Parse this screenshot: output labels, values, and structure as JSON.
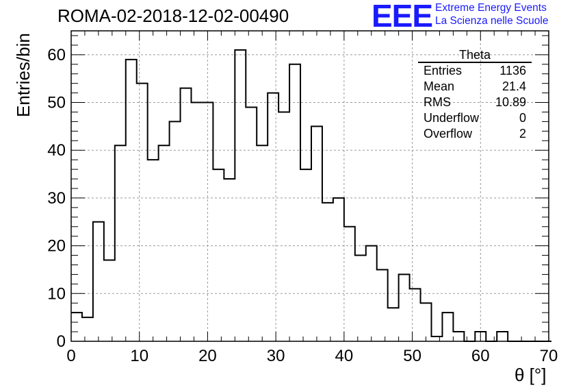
{
  "header": {
    "title": "ROMA-02-2018-12-02-00490",
    "logo": "EEE",
    "logo_line1": "Extreme Energy Events",
    "logo_line2": "La Scienza nelle Scuole"
  },
  "stats_box": {
    "title": "Theta",
    "rows": [
      {
        "label": "Entries",
        "value": "1136"
      },
      {
        "label": "Mean",
        "value": "21.4"
      },
      {
        "label": "RMS",
        "value": "10.89"
      },
      {
        "label": "Underflow",
        "value": "0"
      },
      {
        "label": "Overflow",
        "value": "2"
      }
    ]
  },
  "chart_data": {
    "type": "bar",
    "histogram": true,
    "xlabel": "θ [°]",
    "ylabel": "Entries/bin",
    "xlim": [
      0,
      70
    ],
    "ylim": [
      0,
      65
    ],
    "grid": true,
    "bin_width": 1.6,
    "bin_edges_start": 0,
    "values": [
      6,
      5,
      25,
      17,
      41,
      59,
      54,
      38,
      41,
      46,
      53,
      50,
      50,
      36,
      34,
      61,
      49,
      41,
      52,
      48,
      58,
      36,
      45,
      29,
      30,
      24,
      18,
      20,
      15,
      7,
      14,
      11,
      8,
      1,
      6,
      2,
      0,
      2,
      0,
      2,
      0,
      0,
      0,
      0
    ],
    "xticks": [
      0,
      10,
      20,
      30,
      40,
      50,
      60,
      70
    ],
    "yticks": [
      0,
      10,
      20,
      30,
      40,
      50,
      60
    ]
  },
  "colors": {
    "grid": "#999999",
    "line": "#000000",
    "logo": "#1a1aff"
  }
}
